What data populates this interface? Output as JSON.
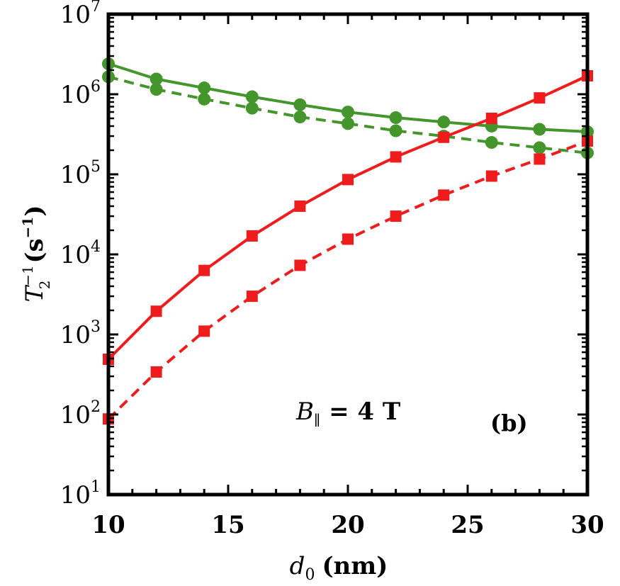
{
  "chart_data": {
    "type": "line",
    "xlabel": {
      "var": "d",
      "sub": "0",
      "unit": "(nm)"
    },
    "ylabel": {
      "var": "T",
      "sub": "2",
      "sup": "−1",
      "unit_pre": "(s",
      "unit_sup": "−1",
      "unit_post": ")"
    },
    "xlim": [
      10,
      30
    ],
    "ylim": [
      10,
      10000000
    ],
    "yscale": "log",
    "grid": false,
    "legend": "none",
    "x_ticks": [
      "10",
      "15",
      "20",
      "25",
      "30"
    ],
    "y_ticks": [
      {
        "base": "10",
        "exp": "1"
      },
      {
        "base": "10",
        "exp": "2"
      },
      {
        "base": "10",
        "exp": "3"
      },
      {
        "base": "10",
        "exp": "4"
      },
      {
        "base": "10",
        "exp": "5"
      },
      {
        "base": "10",
        "exp": "6"
      },
      {
        "base": "10",
        "exp": "7"
      }
    ],
    "annotation": {
      "var": "B",
      "sub": "∥",
      "rest": " = 4 T"
    },
    "panel_label": "(b)",
    "series": [
      {
        "color": "#44952b",
        "marker": "circle",
        "line": "solid",
        "x": [
          10,
          12,
          14,
          16,
          18,
          20,
          22,
          24,
          26,
          28,
          30
        ],
        "y": [
          2400000,
          1550000,
          1200000,
          930000,
          740000,
          600000,
          510000,
          450000,
          400000,
          365000,
          340000
        ]
      },
      {
        "color": "#44952b",
        "marker": "circle",
        "line": "dashed",
        "x": [
          10,
          12,
          14,
          16,
          18,
          20,
          22,
          24,
          26,
          28,
          30
        ],
        "y": [
          1650000,
          1150000,
          870000,
          670000,
          520000,
          430000,
          350000,
          300000,
          250000,
          215000,
          185000
        ]
      },
      {
        "color": "#ee1c1c",
        "marker": "square",
        "line": "solid",
        "x": [
          10,
          12,
          14,
          16,
          18,
          20,
          22,
          24,
          26,
          28,
          30
        ],
        "y": [
          490,
          1950,
          6300,
          17000,
          40000,
          86000,
          165000,
          290000,
          500000,
          900000,
          1700000
        ]
      },
      {
        "color": "#ee1c1c",
        "marker": "square",
        "line": "dashed",
        "x": [
          10,
          12,
          14,
          16,
          18,
          20,
          22,
          24,
          26,
          28,
          30
        ],
        "y": [
          88,
          340,
          1100,
          3000,
          7300,
          15500,
          30000,
          55000,
          95000,
          155000,
          260000
        ]
      }
    ]
  }
}
